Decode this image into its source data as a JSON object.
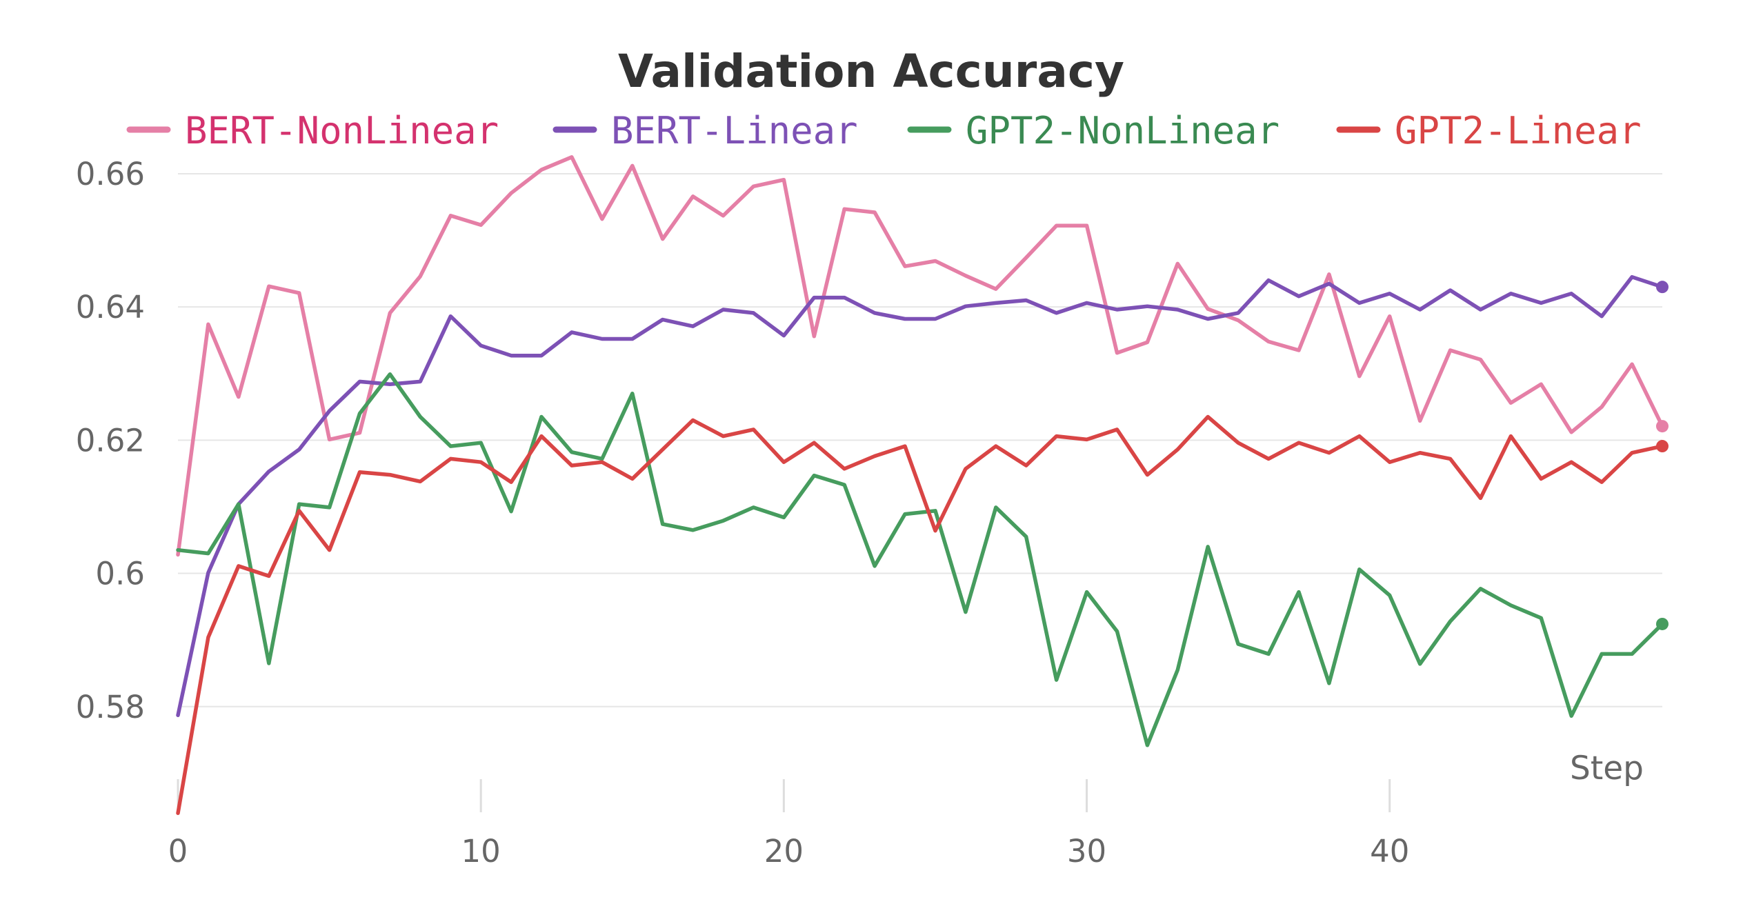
{
  "chart_data": {
    "type": "line",
    "title": "Validation Accuracy",
    "xlabel": "Step",
    "ylabel": "",
    "xlim": [
      0,
      49
    ],
    "ylim": [
      0.566,
      0.666
    ],
    "xticks": [
      0,
      10,
      20,
      30,
      40
    ],
    "xtick_labels": [
      "0",
      "10",
      "20",
      "30",
      "40"
    ],
    "yticks": [
      0.58,
      0.6,
      0.62,
      0.64,
      0.66
    ],
    "ytick_labels": [
      "0.58",
      "0.6",
      "0.62",
      "0.64",
      "0.66"
    ],
    "grid": true,
    "legend_position": "top",
    "x": [
      0,
      1,
      2,
      3,
      4,
      5,
      6,
      7,
      8,
      9,
      10,
      11,
      12,
      13,
      14,
      15,
      16,
      17,
      18,
      19,
      20,
      21,
      22,
      23,
      24,
      25,
      26,
      27,
      28,
      29,
      30,
      31,
      32,
      33,
      34,
      35,
      36,
      37,
      38,
      39,
      40,
      41,
      42,
      43,
      44,
      45,
      46,
      47,
      48,
      49
    ],
    "series": [
      {
        "name": "BERT-NonLinear",
        "color": "#e57fa6",
        "legend_text_color": "#d4326e",
        "values": [
          0.6028,
          0.6374,
          0.6265,
          0.6431,
          0.6421,
          0.6201,
          0.6211,
          0.6391,
          0.6446,
          0.6537,
          0.6523,
          0.6571,
          0.6606,
          0.6625,
          0.6532,
          0.6612,
          0.6502,
          0.6566,
          0.6537,
          0.6581,
          0.6591,
          0.6356,
          0.6547,
          0.6542,
          0.6461,
          0.6469,
          0.6447,
          0.6427,
          0.6474,
          0.6522,
          0.6522,
          0.6331,
          0.6347,
          0.6465,
          0.6397,
          0.638,
          0.6348,
          0.6335,
          0.6449,
          0.6296,
          0.6386,
          0.6229,
          0.6335,
          0.6321,
          0.6256,
          0.6284,
          0.6212,
          0.625,
          0.6314,
          0.6221
        ]
      },
      {
        "name": "BERT-Linear",
        "color": "#7d51b5",
        "legend_text_color": "#7d51b5",
        "values": [
          0.5787,
          0.6001,
          0.6104,
          0.6153,
          0.6186,
          0.6244,
          0.6288,
          0.6284,
          0.6288,
          0.6386,
          0.6342,
          0.6327,
          0.6327,
          0.6362,
          0.6352,
          0.6352,
          0.6381,
          0.6371,
          0.6396,
          0.6391,
          0.6357,
          0.6414,
          0.6414,
          0.6391,
          0.6382,
          0.6382,
          0.6401,
          0.6406,
          0.641,
          0.6391,
          0.6406,
          0.6396,
          0.6401,
          0.6396,
          0.6382,
          0.6391,
          0.644,
          0.6416,
          0.6435,
          0.6406,
          0.642,
          0.6396,
          0.6425,
          0.6396,
          0.642,
          0.6406,
          0.642,
          0.6386,
          0.6445,
          0.643
        ]
      },
      {
        "name": "GPT2-NonLinear",
        "color": "#469c5e",
        "legend_text_color": "#3a8a52",
        "values": [
          0.6035,
          0.603,
          0.6104,
          0.5865,
          0.6104,
          0.6099,
          0.624,
          0.6299,
          0.6235,
          0.6191,
          0.6196,
          0.6093,
          0.6235,
          0.6182,
          0.6172,
          0.627,
          0.6074,
          0.6065,
          0.6079,
          0.6099,
          0.6084,
          0.6147,
          0.6133,
          0.6011,
          0.6089,
          0.6094,
          0.5942,
          0.6099,
          0.6055,
          0.584,
          0.5972,
          0.5913,
          0.5742,
          0.5855,
          0.604,
          0.5894,
          0.5879,
          0.5972,
          0.5835,
          0.6006,
          0.5967,
          0.5864,
          0.5928,
          0.5977,
          0.5952,
          0.5933,
          0.5786,
          0.5879,
          0.5879,
          0.5924
        ]
      },
      {
        "name": "GPT2-Linear",
        "color": "#d94545",
        "legend_text_color": "#d94545",
        "values": [
          0.564,
          0.5904,
          0.6011,
          0.5996,
          0.6094,
          0.6035,
          0.6152,
          0.6148,
          0.6138,
          0.6172,
          0.6167,
          0.6137,
          0.6206,
          0.6162,
          0.6167,
          0.6142,
          0.6186,
          0.623,
          0.6206,
          0.6216,
          0.6167,
          0.6196,
          0.6157,
          0.6176,
          0.6191,
          0.6064,
          0.6157,
          0.6191,
          0.6162,
          0.6206,
          0.6201,
          0.6216,
          0.6148,
          0.6186,
          0.6235,
          0.6196,
          0.6172,
          0.6196,
          0.6181,
          0.6206,
          0.6167,
          0.6181,
          0.6172,
          0.6113,
          0.6206,
          0.6142,
          0.6167,
          0.6137,
          0.6181,
          0.6191
        ]
      }
    ]
  }
}
